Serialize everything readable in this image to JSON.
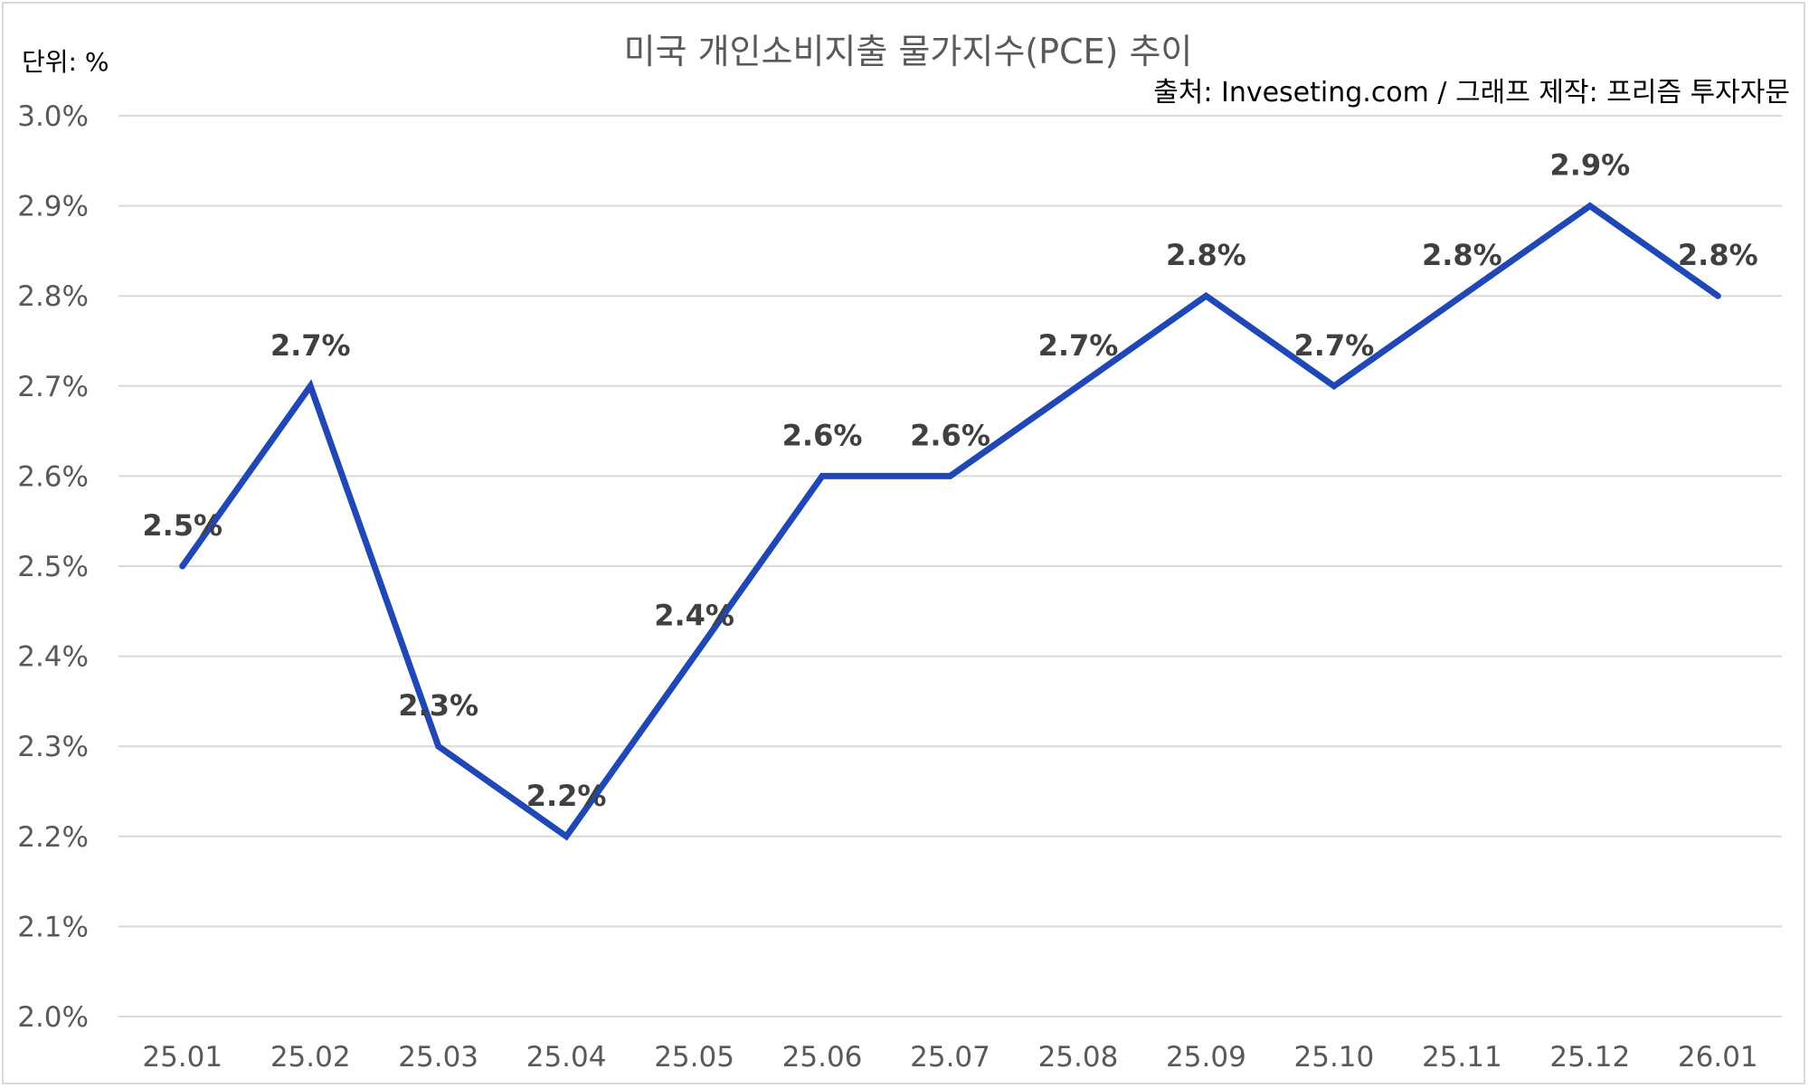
{
  "chart_data": {
    "type": "line",
    "title": "미국 개인소비지출 물가지수(PCE) 추이",
    "unit_label": "단위: %",
    "source_label": "출처: Inveseting.com / 그래프 제작: 프리즘 투자자문",
    "categories": [
      "25.01",
      "25.02",
      "25.03",
      "25.04",
      "25.05",
      "25.06",
      "25.07",
      "25.08",
      "25.09",
      "25.10",
      "25.11",
      "25.12",
      "26.01"
    ],
    "series": [
      {
        "values": [
          2.5,
          2.7,
          2.3,
          2.2,
          2.4,
          2.6,
          2.6,
          2.7,
          2.8,
          2.7,
          2.8,
          2.9,
          2.8
        ],
        "color": "#1f47b5"
      }
    ],
    "data_labels": [
      "2.5%",
      "2.7%",
      "2.3%",
      "2.2%",
      "2.4%",
      "2.6%",
      "2.6%",
      "2.7%",
      "2.8%",
      "2.7%",
      "2.8%",
      "2.9%",
      "2.8%"
    ],
    "y_ticks": [
      "2.0%",
      "2.1%",
      "2.2%",
      "2.3%",
      "2.4%",
      "2.5%",
      "2.6%",
      "2.7%",
      "2.8%",
      "2.9%",
      "3.0%"
    ],
    "ylim": [
      2.0,
      3.0
    ],
    "grid": true,
    "legend": "none"
  }
}
